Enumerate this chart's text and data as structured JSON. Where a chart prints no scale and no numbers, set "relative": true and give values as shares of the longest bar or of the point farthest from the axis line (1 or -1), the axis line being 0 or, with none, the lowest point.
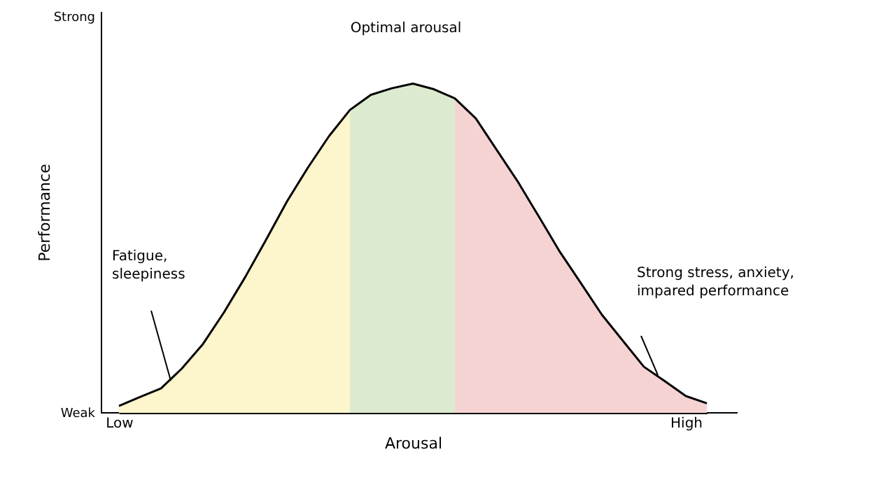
{
  "chart_data": {
    "type": "area",
    "relative": true,
    "xlabel": "Arousal",
    "ylabel": "Performance",
    "categories": [
      "Low",
      null,
      null,
      null,
      null,
      null,
      null,
      null,
      null,
      null,
      null,
      null,
      null,
      null,
      null,
      null,
      null,
      null,
      null,
      null,
      null,
      null,
      null,
      null,
      null,
      null,
      null,
      "High",
      null
    ],
    "series": [
      {
        "color": "#fdf5cc",
        "values": [
          0.021,
          0.048,
          0.074,
          0.135,
          0.209,
          0.305,
          0.411,
          0.525,
          0.642,
          0.745,
          0.84,
          0.92,
          null,
          null,
          null,
          null,
          null,
          null,
          null,
          null,
          null,
          null,
          null,
          null,
          null,
          null,
          null,
          null,
          null
        ]
      },
      {
        "color": "#dcebd0",
        "values": [
          null,
          null,
          null,
          null,
          null,
          null,
          null,
          null,
          null,
          null,
          null,
          0.92,
          0.966,
          0.986,
          1.0,
          0.983,
          0.955,
          null,
          null,
          null,
          null,
          null,
          null,
          null,
          null,
          null,
          null,
          null,
          null
        ]
      },
      {
        "color": "#f6d3d3",
        "values": [
          null,
          null,
          null,
          null,
          null,
          null,
          null,
          null,
          null,
          null,
          null,
          null,
          null,
          null,
          null,
          null,
          0.955,
          0.894,
          0.798,
          0.702,
          0.596,
          0.489,
          0.394,
          0.298,
          0.219,
          0.14,
          0.096,
          0.051,
          0.029
        ]
      },
      {
        "type": "line",
        "color": "#000000",
        "values": [
          0.021,
          0.048,
          0.074,
          0.135,
          0.209,
          0.305,
          0.411,
          0.525,
          0.642,
          0.745,
          0.84,
          0.92,
          0.966,
          0.986,
          1.0,
          0.983,
          0.955,
          0.894,
          0.798,
          0.702,
          0.596,
          0.489,
          0.394,
          0.298,
          0.219,
          0.14,
          0.096,
          0.051,
          0.029
        ]
      }
    ],
    "annotations": [
      "Strong",
      "Weak",
      "Optimal arousal",
      "Fatigue,\nsleepiness",
      "Strong stress, anxiety,\nimpared performance"
    ],
    "grid": false
  }
}
